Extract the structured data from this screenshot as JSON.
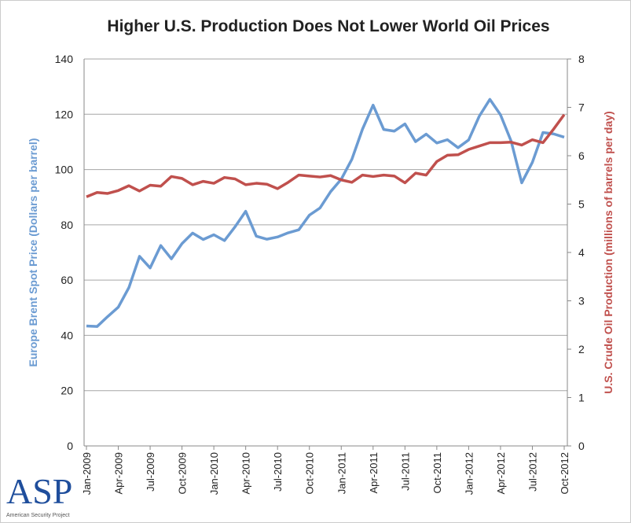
{
  "chart_data": {
    "type": "line",
    "title": "Higher U.S. Production Does Not Lower World Oil Prices",
    "ylabel": "Europe Brent Spot Price (Dollars per barrel)",
    "y2label": "U.S. Crude Oil Production (millions of barrels per day)",
    "logo_text": "ASP",
    "logo_caption": "American Security Project",
    "categories": [
      "Jan-2009",
      null,
      null,
      "Apr-2009",
      null,
      null,
      "Jul-2009",
      null,
      null,
      "Oct-2009",
      null,
      null,
      "Jan-2010",
      null,
      null,
      "Apr-2010",
      null,
      null,
      "Jul-2010",
      null,
      null,
      "Oct-2010",
      null,
      null,
      "Jan-2011",
      null,
      null,
      "Apr-2011",
      null,
      null,
      "Jul-2011",
      null,
      null,
      "Oct-2011",
      null,
      null,
      "Jan-2012",
      null,
      null,
      "Apr-2012",
      null,
      null,
      "Jul-2012",
      null,
      null,
      "Oct-2012"
    ],
    "series": [
      {
        "color": "#6b9bd2",
        "values": [
          43.4,
          43.2,
          46.8,
          50.2,
          57.3,
          68.6,
          64.4,
          72.5,
          67.7,
          73.2,
          77.0,
          74.7,
          76.4,
          74.3,
          79.3,
          84.9,
          75.9,
          74.8,
          75.6,
          77.1,
          78.2,
          83.5,
          86.1,
          92.0,
          96.5,
          103.7,
          114.6,
          123.3,
          114.5,
          113.9,
          116.5,
          110.1,
          112.8,
          109.6,
          110.8,
          107.9,
          110.7,
          119.3,
          125.4,
          119.8,
          110.3,
          95.2,
          102.6,
          113.4,
          112.9,
          111.7
        ]
      },
      {
        "color": "#c0504d",
        "axis": "y2",
        "values": [
          5.15,
          5.24,
          5.22,
          5.28,
          5.38,
          5.27,
          5.39,
          5.37,
          5.57,
          5.53,
          5.4,
          5.47,
          5.43,
          5.55,
          5.52,
          5.4,
          5.43,
          5.41,
          5.32,
          5.45,
          5.6,
          5.58,
          5.56,
          5.59,
          5.5,
          5.45,
          5.6,
          5.57,
          5.6,
          5.58,
          5.44,
          5.64,
          5.6,
          5.88,
          6.01,
          6.02,
          6.13,
          6.2,
          6.27,
          6.27,
          6.28,
          6.22,
          6.33,
          6.27,
          6.55,
          6.85
        ]
      }
    ],
    "ylim": [
      0,
      140
    ],
    "yticks": [
      0,
      20,
      40,
      60,
      80,
      100,
      120,
      140
    ],
    "y2lim": [
      0,
      8
    ],
    "y2ticks": [
      0,
      1,
      2,
      3,
      4,
      5,
      6,
      7,
      8
    ],
    "grid": true
  }
}
